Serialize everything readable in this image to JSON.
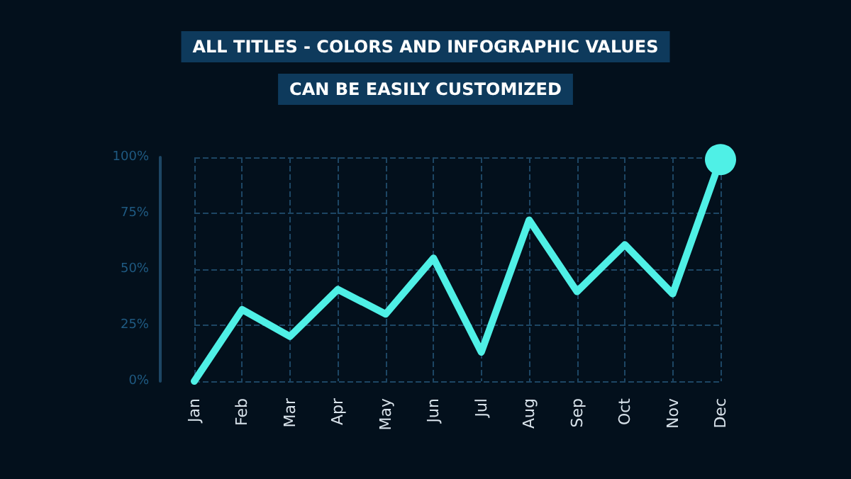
{
  "chart_data": {
    "type": "line",
    "title": "ALL TITLES - COLORS AND INFOGRAPHIC VALUES",
    "subtitle": "CAN BE EASILY CUSTOMIZED",
    "categories": [
      "Jan",
      "Feb",
      "Mar",
      "Apr",
      "May",
      "Jun",
      "Jul",
      "Aug",
      "Sep",
      "Oct",
      "Nov",
      "Dec"
    ],
    "series": [
      {
        "color": "#4ff0e6",
        "values": [
          0,
          32,
          20,
          41,
          30,
          55,
          13,
          72,
          40,
          61,
          39,
          99
        ]
      }
    ],
    "ylim": [
      0,
      100
    ],
    "yticks": [
      {
        "value": 0,
        "label": "0%"
      },
      {
        "value": 25,
        "label": "25%"
      },
      {
        "value": 50,
        "label": "50%"
      },
      {
        "value": 75,
        "label": "75%"
      },
      {
        "value": 100,
        "label": "100%"
      }
    ],
    "grid": true,
    "marker": "none",
    "line_style": "solid"
  }
}
